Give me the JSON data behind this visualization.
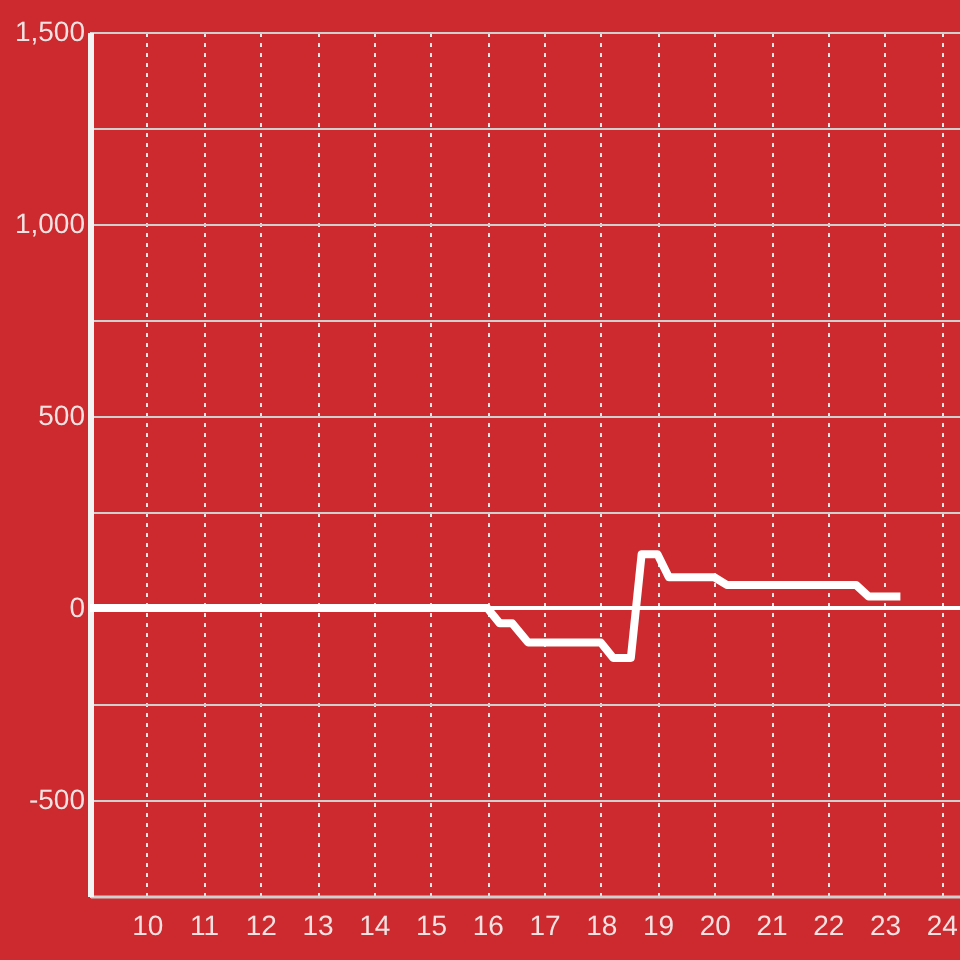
{
  "chart_data": {
    "type": "line",
    "x": [
      9,
      16,
      16.22,
      16.44,
      16.72,
      18,
      18.22,
      18.53,
      18.72,
      19,
      19.2,
      20,
      20.22,
      22.5,
      22.72,
      23.28
    ],
    "series": [
      {
        "color": "#ffffff",
        "values": [
          0,
          0,
          -40,
          -40,
          -90,
          -90,
          -130,
          -130,
          140,
          140,
          80,
          80,
          60,
          60,
          30,
          30
        ]
      }
    ],
    "xlim": [
      9,
      24.33
    ],
    "ylim": [
      -750,
      1500
    ],
    "xticks": [
      10,
      11,
      12,
      13,
      14,
      15,
      16,
      17,
      18,
      19,
      20,
      21,
      22,
      23,
      24
    ],
    "yticks": [
      -500,
      {
        "value": -250,
        "label": null
      },
      0,
      {
        "value": 250,
        "label": null
      },
      500,
      {
        "value": 750,
        "label": null
      },
      {
        "value": 1000,
        "label": "1,000"
      },
      {
        "value": 1250,
        "label": null
      },
      {
        "value": 1500,
        "label": "1,500"
      }
    ],
    "grid": true,
    "ref_lines": [
      {
        "axis": "y",
        "value": 0,
        "color": "#ffffff"
      }
    ],
    "line_style": "solid"
  }
}
